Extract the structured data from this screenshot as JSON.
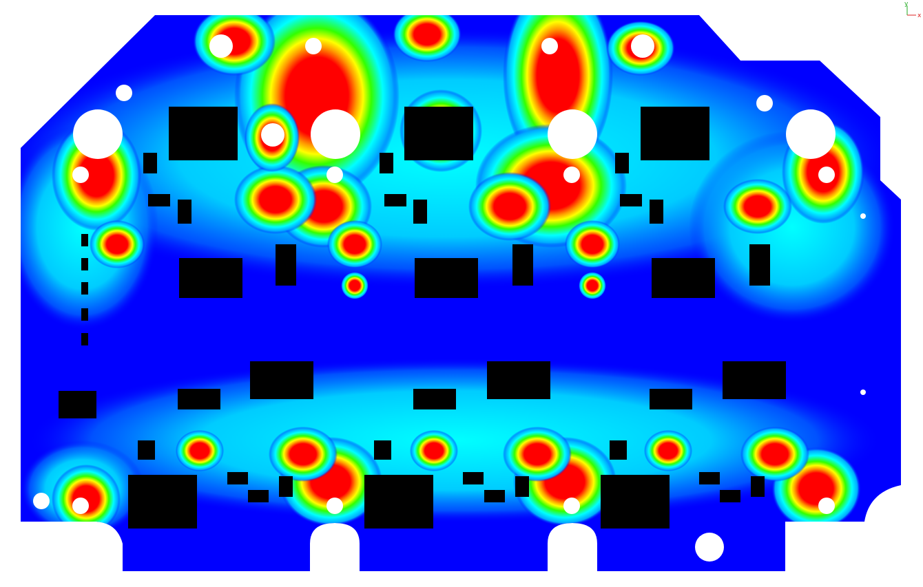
{
  "triad": {
    "y_label": "y",
    "x_label": "x"
  }
}
